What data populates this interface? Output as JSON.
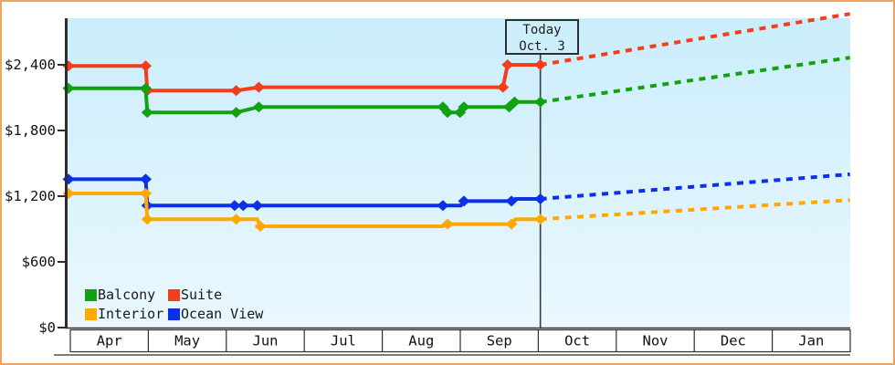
{
  "ui": {
    "today_box": {
      "line1": "Today",
      "line2": "Oct. 3"
    }
  },
  "legend": {
    "items": [
      {
        "label": "Balcony",
        "color": "#11a211"
      },
      {
        "label": "Suite",
        "color": "#f43d1d"
      },
      {
        "label": "Interior",
        "color": "#ffa800"
      },
      {
        "label": "Ocean View",
        "color": "#0c2fe8"
      }
    ]
  },
  "chart_data": {
    "type": "line",
    "title": "",
    "xlabel": "",
    "ylabel": "",
    "x_unit": "months since Apr 1",
    "month_labels": [
      "Apr",
      "May",
      "Jun",
      "Jul",
      "Aug",
      "Sep",
      "Oct",
      "Nov",
      "Dec",
      "Jan"
    ],
    "y_ticks": [
      {
        "value": 0,
        "label": "$0"
      },
      {
        "value": 600,
        "label": "$600"
      },
      {
        "value": 1200,
        "label": "$1,200"
      },
      {
        "value": 1800,
        "label": "$1,800"
      },
      {
        "value": 2400,
        "label": "$2,400"
      }
    ],
    "ylim": [
      0,
      2825
    ],
    "xlim_months": [
      0,
      10.03
    ],
    "grid": false,
    "legend_position": "bottom-left inside",
    "today": {
      "u": 6.05,
      "label_line1": "Today",
      "label_line2": "Oct. 3"
    },
    "series": [
      {
        "name": "Suite",
        "color": "#f43d1d",
        "points": [
          [
            0,
            2390,
            1
          ],
          [
            0.99,
            2390,
            1
          ],
          [
            1.01,
            2165,
            1
          ],
          [
            2.15,
            2165,
            1
          ],
          [
            2.44,
            2195,
            1
          ],
          [
            5.57,
            2195,
            1
          ],
          [
            5.63,
            2400,
            1
          ],
          [
            6.05,
            2400,
            1
          ]
        ]
      },
      {
        "name": "Balcony",
        "color": "#11a211",
        "points": [
          [
            0,
            2185,
            1
          ],
          [
            0.99,
            2185,
            1
          ],
          [
            1.01,
            1965,
            1
          ],
          [
            2.15,
            1965,
            1
          ],
          [
            2.44,
            2015,
            1
          ],
          [
            4.8,
            2015,
            1
          ],
          [
            4.86,
            1965,
            1
          ],
          [
            5.02,
            1965,
            1
          ],
          [
            5.07,
            2015,
            1
          ],
          [
            5.65,
            2015,
            1
          ],
          [
            5.72,
            2060,
            1
          ],
          [
            6.05,
            2060,
            1
          ]
        ]
      },
      {
        "name": "Ocean View",
        "color": "#0c2fe8",
        "points": [
          [
            0,
            1355,
            1
          ],
          [
            0.99,
            1355,
            1
          ],
          [
            1.01,
            1115,
            1
          ],
          [
            2.13,
            1115,
            1
          ],
          [
            2.24,
            1115,
            1
          ],
          [
            2.42,
            1115,
            1
          ],
          [
            4.8,
            1115,
            1
          ],
          [
            5.03,
            1115,
            0
          ],
          [
            5.07,
            1155,
            1
          ],
          [
            5.68,
            1155,
            1
          ],
          [
            5.73,
            1175,
            0
          ],
          [
            6.05,
            1175,
            1
          ]
        ]
      },
      {
        "name": "Interior",
        "color": "#ffa800",
        "points": [
          [
            0,
            1225,
            1
          ],
          [
            0.99,
            1225,
            1
          ],
          [
            1.01,
            990,
            1
          ],
          [
            2.15,
            990,
            1
          ],
          [
            2.42,
            990,
            0
          ],
          [
            2.46,
            925,
            1
          ],
          [
            4.8,
            925,
            0
          ],
          [
            4.86,
            945,
            1
          ],
          [
            5.68,
            945,
            1
          ],
          [
            5.73,
            990,
            0
          ],
          [
            6.05,
            990,
            1
          ]
        ]
      }
    ],
    "projections": [
      {
        "name": "Suite",
        "color": "#f43d1d",
        "from": [
          6.05,
          2400
        ],
        "to": [
          10.02,
          2865
        ]
      },
      {
        "name": "Balcony",
        "color": "#11a211",
        "from": [
          6.05,
          2060
        ],
        "to": [
          10.02,
          2465
        ]
      },
      {
        "name": "Ocean View",
        "color": "#0c2fe8",
        "from": [
          6.05,
          1175
        ],
        "to": [
          10.02,
          1400
        ]
      },
      {
        "name": "Interior",
        "color": "#ffa800",
        "from": [
          6.05,
          990
        ],
        "to": [
          10.02,
          1165
        ]
      }
    ],
    "plot_colors": {
      "background_top": "#cbedfb",
      "background_bottom": "#eaf8fe",
      "axis": "#2e2e2e",
      "frame_border": "#f0a55f"
    }
  }
}
